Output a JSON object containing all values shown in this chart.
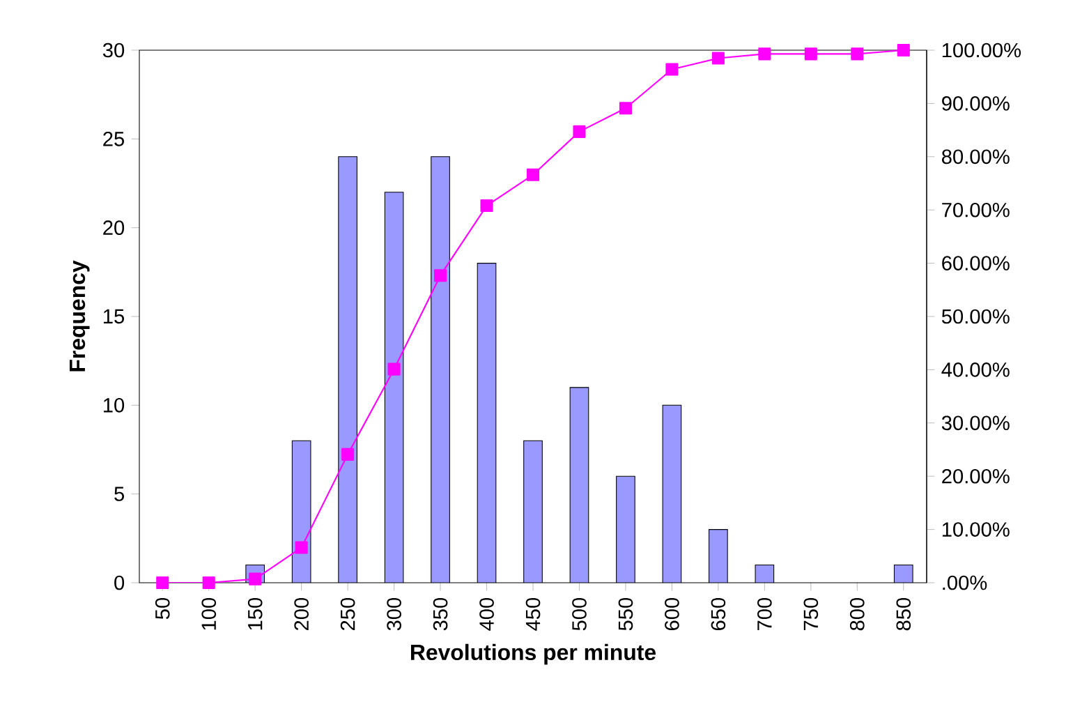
{
  "chart_data": {
    "type": "bar",
    "xlabel": "Revolutions per minute",
    "ylabel": "Frequency",
    "categories": [
      "50",
      "100",
      "150",
      "200",
      "250",
      "300",
      "350",
      "400",
      "450",
      "500",
      "550",
      "600",
      "650",
      "700",
      "750",
      "800",
      "850"
    ],
    "series": [
      {
        "color": "#9999ff",
        "values": [
          0,
          0,
          1,
          8,
          24,
          22,
          24,
          18,
          8,
          11,
          6,
          10,
          3,
          1,
          0,
          0,
          1
        ]
      },
      {
        "type": "line",
        "axis": "y2",
        "color": "#ff00ff",
        "marker": "square",
        "values": [
          0,
          0,
          0.7,
          6.6,
          24.1,
          40.1,
          57.7,
          70.8,
          76.6,
          84.7,
          89.1,
          96.4,
          98.5,
          99.3,
          99.3,
          99.3,
          100
        ]
      }
    ],
    "ylim": [
      0,
      30
    ],
    "yticks": [
      0,
      5,
      10,
      15,
      20,
      25,
      30
    ],
    "y2lim": [
      0,
      100
    ],
    "y2ticks": [
      {
        "value": 0,
        "label": ".00%"
      },
      {
        "value": 10,
        "label": "10.00%"
      },
      {
        "value": 20,
        "label": "20.00%"
      },
      {
        "value": 30,
        "label": "30.00%"
      },
      {
        "value": 40,
        "label": "40.00%"
      },
      {
        "value": 50,
        "label": "50.00%"
      },
      {
        "value": 60,
        "label": "60.00%"
      },
      {
        "value": 70,
        "label": "70.00%"
      },
      {
        "value": 80,
        "label": "80.00%"
      },
      {
        "value": 90,
        "label": "90.00%"
      },
      {
        "value": 100,
        "label": "100.00%"
      }
    ]
  }
}
